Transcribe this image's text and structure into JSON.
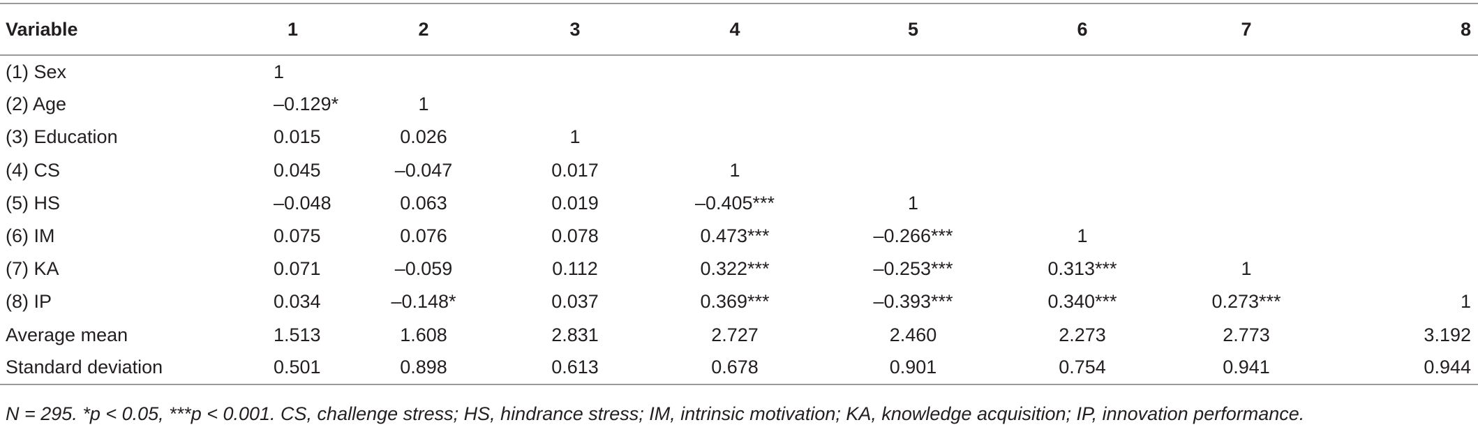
{
  "table": {
    "headers": [
      "Variable",
      "1",
      "2",
      "3",
      "4",
      "5",
      "6",
      "7",
      "8"
    ],
    "rows": [
      [
        "(1) Sex",
        "1",
        "",
        "",
        "",
        "",
        "",
        "",
        ""
      ],
      [
        "(2) Age",
        "–0.129*",
        "1",
        "",
        "",
        "",
        "",
        "",
        ""
      ],
      [
        "(3) Education",
        "0.015",
        "0.026",
        "1",
        "",
        "",
        "",
        "",
        ""
      ],
      [
        "(4) CS",
        "0.045",
        "–0.047",
        "0.017",
        "1",
        "",
        "",
        "",
        ""
      ],
      [
        "(5) HS",
        "–0.048",
        "0.063",
        "0.019",
        "–0.405***",
        "1",
        "",
        "",
        ""
      ],
      [
        "(6) IM",
        "0.075",
        "0.076",
        "0.078",
        "0.473***",
        "–0.266***",
        "1",
        "",
        ""
      ],
      [
        "(7) KA",
        "0.071",
        "–0.059",
        "0.112",
        "0.322***",
        "–0.253***",
        "0.313***",
        "1",
        ""
      ],
      [
        "(8) IP",
        "0.034",
        "–0.148*",
        "0.037",
        "0.369***",
        "–0.393***",
        "0.340***",
        "0.273***",
        "1"
      ],
      [
        "Average mean",
        "1.513",
        "1.608",
        "2.831",
        "2.727",
        "2.460",
        "2.273",
        "2.773",
        "3.192"
      ],
      [
        "Standard deviation",
        "0.501",
        "0.898",
        "0.613",
        "0.678",
        "0.901",
        "0.754",
        "0.941",
        "0.944"
      ]
    ]
  },
  "note": "N = 295. *p < 0.05, ***p < 0.001. CS, challenge stress; HS, hindrance stress; IM, intrinsic motivation; KA, knowledge acquisition; IP, innovation performance."
}
